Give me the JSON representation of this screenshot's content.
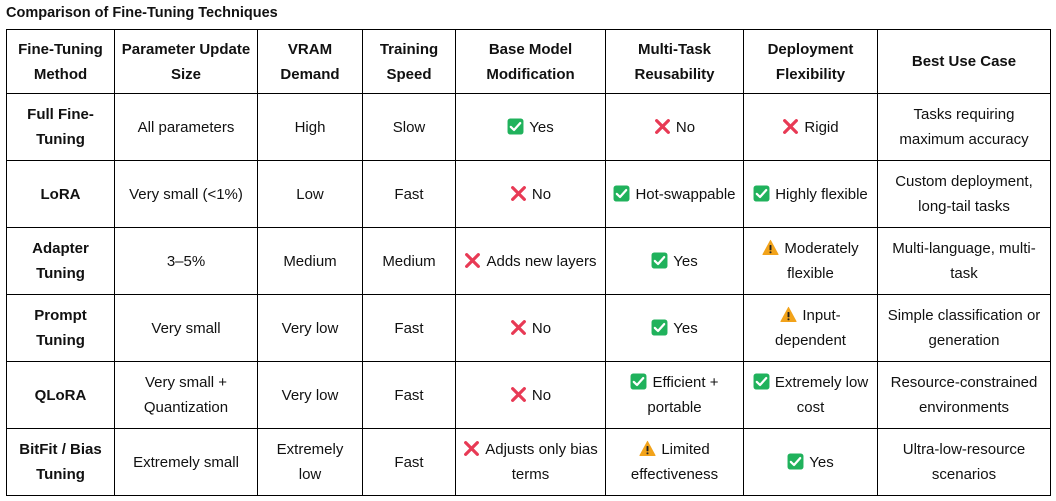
{
  "title": "Comparison of Fine-Tuning Techniques",
  "colors": {
    "check": "#20b25c",
    "cross": "#e83a55",
    "warn": "#f2a31a"
  },
  "headers": [
    "Fine-Tuning Method",
    "Parameter Update Size",
    "VRAM Demand",
    "Training Speed",
    "Base Model Modification",
    "Multi-Task Reusability",
    "Deployment Flexibility",
    "Best Use Case"
  ],
  "rows": [
    {
      "method": "Full Fine-Tuning",
      "param_size": "All parameters",
      "vram": "High",
      "speed": "Slow",
      "base_mod": {
        "icon": "check-icon",
        "text": "Yes"
      },
      "reusability": {
        "icon": "cross-icon",
        "text": "No"
      },
      "flexibility": {
        "icon": "cross-icon",
        "text": "Rigid"
      },
      "use_case": "Tasks requiring maximum accuracy"
    },
    {
      "method": "LoRA",
      "param_size": "Very small (<1%)",
      "vram": "Low",
      "speed": "Fast",
      "base_mod": {
        "icon": "cross-icon",
        "text": "No"
      },
      "reusability": {
        "icon": "check-icon",
        "text": "Hot-swappable"
      },
      "flexibility": {
        "icon": "check-icon",
        "text": "Highly flexible"
      },
      "use_case": "Custom deployment, long-tail tasks"
    },
    {
      "method": "Adapter Tuning",
      "param_size": "3–5%",
      "vram": "Medium",
      "speed": "Medium",
      "base_mod": {
        "icon": "cross-icon",
        "text": "Adds new layers"
      },
      "reusability": {
        "icon": "check-icon",
        "text": "Yes"
      },
      "flexibility": {
        "icon": "warning-icon",
        "text": "Moderately flexible"
      },
      "use_case": "Multi-language, multi-task"
    },
    {
      "method": "Prompt Tuning",
      "param_size": "Very small",
      "vram": "Very low",
      "speed": "Fast",
      "base_mod": {
        "icon": "cross-icon",
        "text": "No"
      },
      "reusability": {
        "icon": "check-icon",
        "text": "Yes"
      },
      "flexibility": {
        "icon": "warning-icon",
        "text": "Input-dependent"
      },
      "use_case": "Simple classification or generation"
    },
    {
      "method": "QLoRA",
      "param_size": "Very small + Quantization",
      "vram": "Very low",
      "speed": "Fast",
      "base_mod": {
        "icon": "cross-icon",
        "text": "No"
      },
      "reusability": {
        "icon": "check-icon",
        "text": "Efficient + portable"
      },
      "flexibility": {
        "icon": "check-icon",
        "text": "Extremely low cost"
      },
      "use_case": "Resource-constrained environments"
    },
    {
      "method": "BitFit / Bias Tuning",
      "param_size": "Extremely small",
      "vram": "Extremely low",
      "speed": "Fast",
      "base_mod": {
        "icon": "cross-icon",
        "text": "Adjusts only bias terms"
      },
      "reusability": {
        "icon": "warning-icon",
        "text": "Limited effectiveness"
      },
      "flexibility": {
        "icon": "check-icon",
        "text": "Yes"
      },
      "use_case": "Ultra-low-resource scenarios"
    }
  ]
}
